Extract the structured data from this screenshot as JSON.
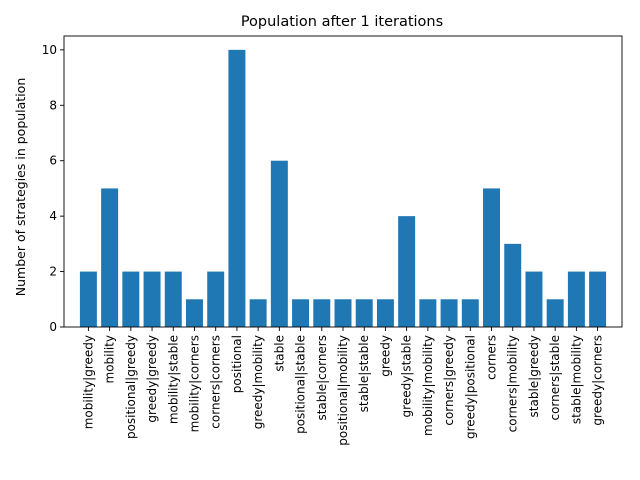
{
  "chart_data": {
    "type": "bar",
    "title": "Population after 1 iterations",
    "xlabel": "",
    "ylabel": "Number of strategies in population",
    "ylim": [
      0,
      10.5
    ],
    "yticks": [
      0,
      2,
      4,
      6,
      8,
      10
    ],
    "grid": false,
    "bar_color": "#1f77b4",
    "categories": [
      "mobility|greedy",
      "mobility",
      "positional|greedy",
      "greedy|greedy",
      "mobility|stable",
      "mobility|corners",
      "corners|corners",
      "positional",
      "greedy|mobility",
      "stable",
      "positional|stable",
      "stable|corners",
      "positional|mobility",
      "stable|stable",
      "greedy",
      "greedy|stable",
      "mobility|mobility",
      "corners|greedy",
      "greedy|positional",
      "corners",
      "corners|mobility",
      "stable|greedy",
      "corners|stable",
      "stable|mobility",
      "greedy|corners"
    ],
    "values": [
      2,
      5,
      2,
      2,
      2,
      1,
      2,
      10,
      1,
      6,
      1,
      1,
      1,
      1,
      1,
      4,
      1,
      1,
      1,
      5,
      3,
      2,
      1,
      2,
      2
    ]
  }
}
